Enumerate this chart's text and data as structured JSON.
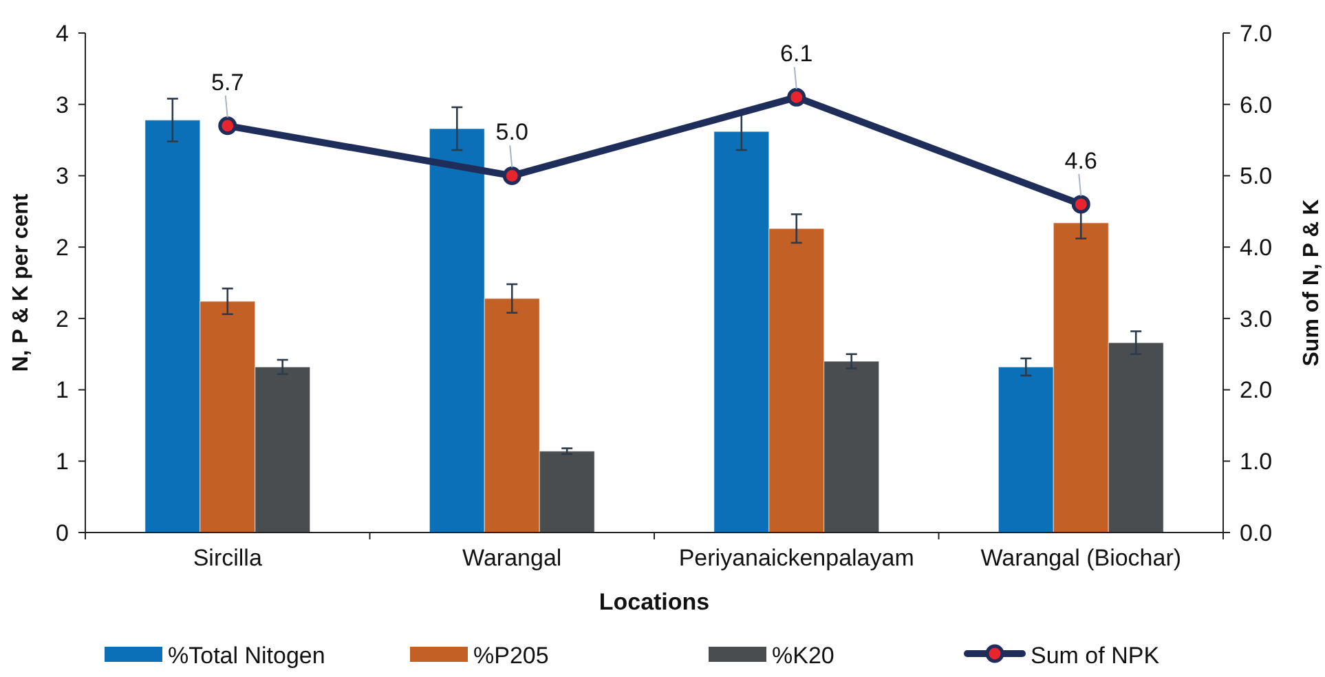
{
  "chart_data": {
    "type": "bar",
    "xlabel": "Locations",
    "ylabel": "N, P & K per cent",
    "y2label": "Sum of N, P & K",
    "categories": [
      "Sircilla",
      "Warangal",
      "Periyanaickenpalayam",
      "Warangal (Biochar)"
    ],
    "series": [
      {
        "name": "%Total Nitogen",
        "color": "#0b70b8",
        "values": [
          2.89,
          2.83,
          2.81,
          1.16
        ],
        "errors": [
          0.15,
          0.15,
          0.13,
          0.06
        ]
      },
      {
        "name": "%P205",
        "color": "#c36025",
        "values": [
          1.62,
          1.64,
          2.13,
          2.17
        ],
        "errors": [
          0.09,
          0.1,
          0.1,
          0.11
        ]
      },
      {
        "name": "%K20",
        "color": "#4a4d50",
        "values": [
          1.16,
          0.57,
          1.2,
          1.33
        ],
        "errors": [
          0.05,
          0.02,
          0.05,
          0.08
        ]
      },
      {
        "name": "Sum of NPK",
        "type": "line",
        "axis": "y2",
        "color": "#1f2d5a",
        "values": [
          5.7,
          5.0,
          6.1,
          4.6
        ],
        "value_labels": [
          "5.7",
          "5.0",
          "6.1",
          "4.6"
        ],
        "marker": "circle"
      }
    ],
    "ylim": [
      0,
      3.5
    ],
    "yticks": [
      {
        "value": 0,
        "label": "0"
      },
      {
        "value": 0.5,
        "label": "1"
      },
      {
        "value": 1,
        "label": "1"
      },
      {
        "value": 1.5,
        "label": "2"
      },
      {
        "value": 2,
        "label": "2"
      },
      {
        "value": 2.5,
        "label": "3"
      },
      {
        "value": 3,
        "label": "3"
      },
      {
        "value": 3.5,
        "label": "4"
      }
    ],
    "y2lim": [
      0,
      7
    ],
    "y2ticks": [
      {
        "value": 0,
        "label": "0.0"
      },
      {
        "value": 1,
        "label": "1.0"
      },
      {
        "value": 2,
        "label": "2.0"
      },
      {
        "value": 3,
        "label": "3.0"
      },
      {
        "value": 4,
        "label": "4.0"
      },
      {
        "value": 5,
        "label": "5.0"
      },
      {
        "value": 6,
        "label": "6.0"
      },
      {
        "value": 7,
        "label": "7.0"
      }
    ],
    "legend": "bottom",
    "grid": false
  }
}
